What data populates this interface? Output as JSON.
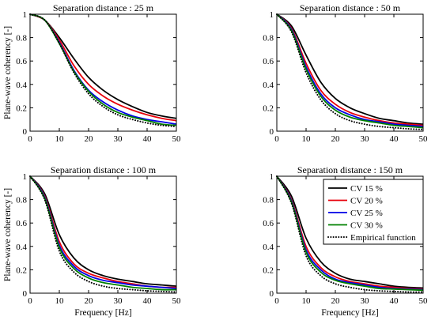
{
  "chart_data": [
    {
      "type": "line",
      "title": "Separation distance : 25 m",
      "xlabel": "",
      "ylabel": "Plane-wave coherency [-]",
      "xlim": [
        0,
        50
      ],
      "ylim": [
        0,
        1
      ],
      "xticks": [
        0,
        10,
        20,
        30,
        40,
        50
      ],
      "yticks": [
        0,
        0.2,
        0.4,
        0.6,
        0.8,
        1
      ],
      "ytick_labels": [
        "0",
        "0.2",
        "0.4",
        "0.6",
        "0.8",
        "1"
      ],
      "legend": null,
      "series": [
        {
          "name": "CV 15 %",
          "x": [
            0,
            5,
            10,
            15,
            20,
            25,
            30,
            35,
            40,
            45,
            50
          ],
          "y": [
            1.0,
            0.95,
            0.8,
            0.62,
            0.46,
            0.35,
            0.27,
            0.21,
            0.16,
            0.13,
            0.11
          ]
        },
        {
          "name": "CV 20 %",
          "x": [
            0,
            5,
            10,
            15,
            20,
            25,
            30,
            35,
            40,
            45,
            50
          ],
          "y": [
            1.0,
            0.95,
            0.78,
            0.56,
            0.4,
            0.3,
            0.23,
            0.18,
            0.14,
            0.11,
            0.09
          ]
        },
        {
          "name": "CV 25 %",
          "x": [
            0,
            5,
            10,
            15,
            20,
            25,
            30,
            35,
            40,
            45,
            50
          ],
          "y": [
            1.0,
            0.95,
            0.76,
            0.52,
            0.35,
            0.25,
            0.18,
            0.13,
            0.1,
            0.08,
            0.06
          ]
        },
        {
          "name": "CV 30 %",
          "x": [
            0,
            5,
            10,
            15,
            20,
            25,
            30,
            35,
            40,
            45,
            50
          ],
          "y": [
            1.0,
            0.95,
            0.75,
            0.51,
            0.34,
            0.23,
            0.16,
            0.12,
            0.09,
            0.06,
            0.05
          ]
        },
        {
          "name": "Empirical function",
          "x": [
            0,
            5,
            10,
            15,
            20,
            25,
            30,
            35,
            40,
            45,
            50
          ],
          "y": [
            1.0,
            0.95,
            0.75,
            0.5,
            0.32,
            0.21,
            0.14,
            0.1,
            0.07,
            0.05,
            0.04
          ]
        }
      ]
    },
    {
      "type": "line",
      "title": "Separation distance : 50 m",
      "xlabel": "",
      "ylabel": "",
      "xlim": [
        0,
        50
      ],
      "ylim": [
        0,
        1
      ],
      "xticks": [
        0,
        10,
        20,
        30,
        40,
        50
      ],
      "yticks": [
        0,
        0.2,
        0.4,
        0.6,
        0.8,
        1
      ],
      "ytick_labels": [
        "0",
        "0.2",
        "0.4",
        "0.6",
        "0.8",
        "1"
      ],
      "legend": null,
      "series": [
        {
          "name": "CV 15 %",
          "x": [
            0,
            5,
            10,
            15,
            20,
            25,
            30,
            35,
            40,
            45,
            50
          ],
          "y": [
            1.0,
            0.9,
            0.65,
            0.42,
            0.28,
            0.2,
            0.15,
            0.11,
            0.09,
            0.07,
            0.06
          ]
        },
        {
          "name": "CV 20 %",
          "x": [
            0,
            5,
            10,
            15,
            20,
            25,
            30,
            35,
            40,
            45,
            50
          ],
          "y": [
            1.0,
            0.88,
            0.58,
            0.35,
            0.23,
            0.16,
            0.12,
            0.09,
            0.07,
            0.06,
            0.05
          ]
        },
        {
          "name": "CV 25 %",
          "x": [
            0,
            5,
            10,
            15,
            20,
            25,
            30,
            35,
            40,
            45,
            50
          ],
          "y": [
            1.0,
            0.87,
            0.55,
            0.32,
            0.2,
            0.14,
            0.1,
            0.08,
            0.06,
            0.05,
            0.04
          ]
        },
        {
          "name": "CV 30 %",
          "x": [
            0,
            5,
            10,
            15,
            20,
            25,
            30,
            35,
            40,
            45,
            50
          ],
          "y": [
            1.0,
            0.86,
            0.53,
            0.3,
            0.18,
            0.12,
            0.09,
            0.07,
            0.05,
            0.04,
            0.03
          ]
        },
        {
          "name": "Empirical function",
          "x": [
            0,
            5,
            10,
            15,
            20,
            25,
            30,
            35,
            40,
            45,
            50
          ],
          "y": [
            1.0,
            0.85,
            0.5,
            0.27,
            0.15,
            0.09,
            0.06,
            0.04,
            0.03,
            0.02,
            0.015
          ]
        }
      ]
    },
    {
      "type": "line",
      "title": "Separation distance : 100 m",
      "xlabel": "Frequency [Hz]",
      "ylabel": "Plane-wave coherency [-]",
      "xlim": [
        0,
        50
      ],
      "ylim": [
        0,
        1
      ],
      "xticks": [
        0,
        10,
        20,
        30,
        40,
        50
      ],
      "yticks": [
        0,
        0.2,
        0.4,
        0.6,
        0.8,
        1
      ],
      "ytick_labels": [
        "0",
        "0.2",
        "0.4",
        "0.6",
        "0.8",
        "1"
      ],
      "legend": null,
      "series": [
        {
          "name": "CV 15 %",
          "x": [
            0,
            5,
            10,
            15,
            20,
            25,
            30,
            35,
            40,
            45,
            50
          ],
          "y": [
            1.0,
            0.85,
            0.5,
            0.3,
            0.2,
            0.15,
            0.12,
            0.1,
            0.08,
            0.07,
            0.06
          ]
        },
        {
          "name": "CV 20 %",
          "x": [
            0,
            5,
            10,
            15,
            20,
            25,
            30,
            35,
            40,
            45,
            50
          ],
          "y": [
            1.0,
            0.83,
            0.44,
            0.25,
            0.17,
            0.13,
            0.1,
            0.08,
            0.06,
            0.05,
            0.05
          ]
        },
        {
          "name": "CV 25 %",
          "x": [
            0,
            5,
            10,
            15,
            20,
            25,
            30,
            35,
            40,
            45,
            50
          ],
          "y": [
            1.0,
            0.82,
            0.41,
            0.23,
            0.15,
            0.11,
            0.09,
            0.07,
            0.06,
            0.05,
            0.04
          ]
        },
        {
          "name": "CV 30 %",
          "x": [
            0,
            5,
            10,
            15,
            20,
            25,
            30,
            35,
            40,
            45,
            50
          ],
          "y": [
            1.0,
            0.81,
            0.39,
            0.21,
            0.13,
            0.09,
            0.07,
            0.05,
            0.04,
            0.03,
            0.03
          ]
        },
        {
          "name": "Empirical function",
          "x": [
            0,
            5,
            10,
            15,
            20,
            25,
            30,
            35,
            40,
            45,
            50
          ],
          "y": [
            1.0,
            0.8,
            0.36,
            0.18,
            0.1,
            0.06,
            0.04,
            0.03,
            0.02,
            0.015,
            0.01
          ]
        }
      ]
    },
    {
      "type": "line",
      "title": "Separation distance : 150 m",
      "xlabel": "Frequency [Hz]",
      "ylabel": "",
      "xlim": [
        0,
        50
      ],
      "ylim": [
        0,
        1
      ],
      "xticks": [
        0,
        10,
        20,
        30,
        40,
        50
      ],
      "yticks": [
        0,
        0.2,
        0.4,
        0.6,
        0.8,
        1
      ],
      "ytick_labels": [
        "0",
        "0.2",
        "0.4",
        "0.6",
        "0.8",
        "1"
      ],
      "legend": "top-right",
      "series": [
        {
          "name": "CV 15 %",
          "x": [
            0,
            5,
            10,
            15,
            20,
            25,
            30,
            35,
            40,
            45,
            50
          ],
          "y": [
            1.0,
            0.83,
            0.47,
            0.27,
            0.17,
            0.12,
            0.1,
            0.08,
            0.06,
            0.05,
            0.045
          ]
        },
        {
          "name": "CV 20 %",
          "x": [
            0,
            5,
            10,
            15,
            20,
            25,
            30,
            35,
            40,
            45,
            50
          ],
          "y": [
            1.0,
            0.8,
            0.4,
            0.22,
            0.14,
            0.1,
            0.08,
            0.06,
            0.05,
            0.04,
            0.035
          ]
        },
        {
          "name": "CV 25 %",
          "x": [
            0,
            5,
            10,
            15,
            20,
            25,
            30,
            35,
            40,
            45,
            50
          ],
          "y": [
            1.0,
            0.79,
            0.37,
            0.2,
            0.12,
            0.09,
            0.07,
            0.05,
            0.04,
            0.035,
            0.03
          ]
        },
        {
          "name": "CV 30 %",
          "x": [
            0,
            5,
            10,
            15,
            20,
            25,
            30,
            35,
            40,
            45,
            50
          ],
          "y": [
            1.0,
            0.78,
            0.35,
            0.18,
            0.11,
            0.08,
            0.06,
            0.04,
            0.035,
            0.03,
            0.025
          ]
        },
        {
          "name": "Empirical function",
          "x": [
            0,
            5,
            10,
            15,
            20,
            25,
            30,
            35,
            40,
            45,
            50
          ],
          "y": [
            1.0,
            0.77,
            0.32,
            0.15,
            0.08,
            0.05,
            0.03,
            0.02,
            0.015,
            0.01,
            0.01
          ]
        }
      ]
    }
  ],
  "series_styles": [
    {
      "color": "#000000",
      "dash": "solid"
    },
    {
      "color": "#e8000b",
      "dash": "solid"
    },
    {
      "color": "#0000e6",
      "dash": "solid"
    },
    {
      "color": "#008000",
      "dash": "solid"
    },
    {
      "color": "#000000",
      "dash": "dotted"
    }
  ]
}
